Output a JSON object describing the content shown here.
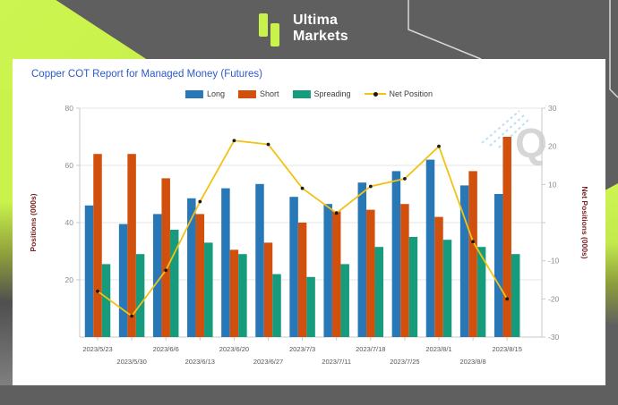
{
  "header": {
    "logo_line1": "Ultima",
    "logo_line2": "Markets",
    "logo_color": "#c9f24c"
  },
  "chart_data": {
    "type": "bar",
    "title": "Copper COT Report for Managed Money (Futures)",
    "title_color": "#2d5bc8",
    "categories": [
      "2023/5/23",
      "2023/5/30",
      "2023/6/6",
      "2023/6/13",
      "2023/6/20",
      "2023/6/27",
      "2023/7/3",
      "2023/7/11",
      "2023/7/18",
      "2023/7/25",
      "2023/8/1",
      "2023/8/8",
      "2023/8/15"
    ],
    "series": [
      {
        "name": "Long",
        "color": "#2878b8",
        "values": [
          46,
          39.5,
          43,
          48.5,
          52,
          53.5,
          49,
          46.5,
          54,
          58,
          62,
          53,
          50
        ]
      },
      {
        "name": "Short",
        "color": "#d2500e",
        "values": [
          64,
          64,
          55.5,
          43,
          30.5,
          33,
          40,
          44,
          44.5,
          46.5,
          42,
          58,
          70
        ]
      },
      {
        "name": "Spreading",
        "color": "#169c7d",
        "values": [
          25.5,
          29,
          37.5,
          33,
          29,
          22,
          21,
          25.5,
          31.5,
          35,
          34,
          31.5,
          29
        ]
      }
    ],
    "line_series": {
      "name": "Net Position",
      "color": "#f2c214",
      "marker_color": "#1a1a1a",
      "axis": "right",
      "values": [
        -18,
        -24.5,
        -12.5,
        5.5,
        21.5,
        20.5,
        9,
        2.5,
        9.5,
        11.5,
        20,
        -5,
        -20
      ]
    },
    "left_axis": {
      "label": "Positions (000s)",
      "range": [
        0,
        80
      ],
      "ticks": [
        20,
        40,
        60,
        80
      ],
      "tick_labels": [
        "20",
        "40",
        "60",
        "80"
      ]
    },
    "right_axis": {
      "label": "Net Positions (000s)",
      "range": [
        -30,
        30
      ],
      "ticks": [
        30,
        20,
        10,
        0,
        -10,
        -20,
        -30
      ],
      "tick_labels": [
        "30",
        "20",
        "10",
        "",
        "-10",
        "-20",
        "-30"
      ]
    },
    "axis_title_color": "#7a2525",
    "tick_label_color": "#8c8c8c",
    "grid_color": "#e4e4e4",
    "axis_line_color": "#c9c9c9",
    "legend_position": "top",
    "grid": true,
    "watermark": "Q"
  }
}
